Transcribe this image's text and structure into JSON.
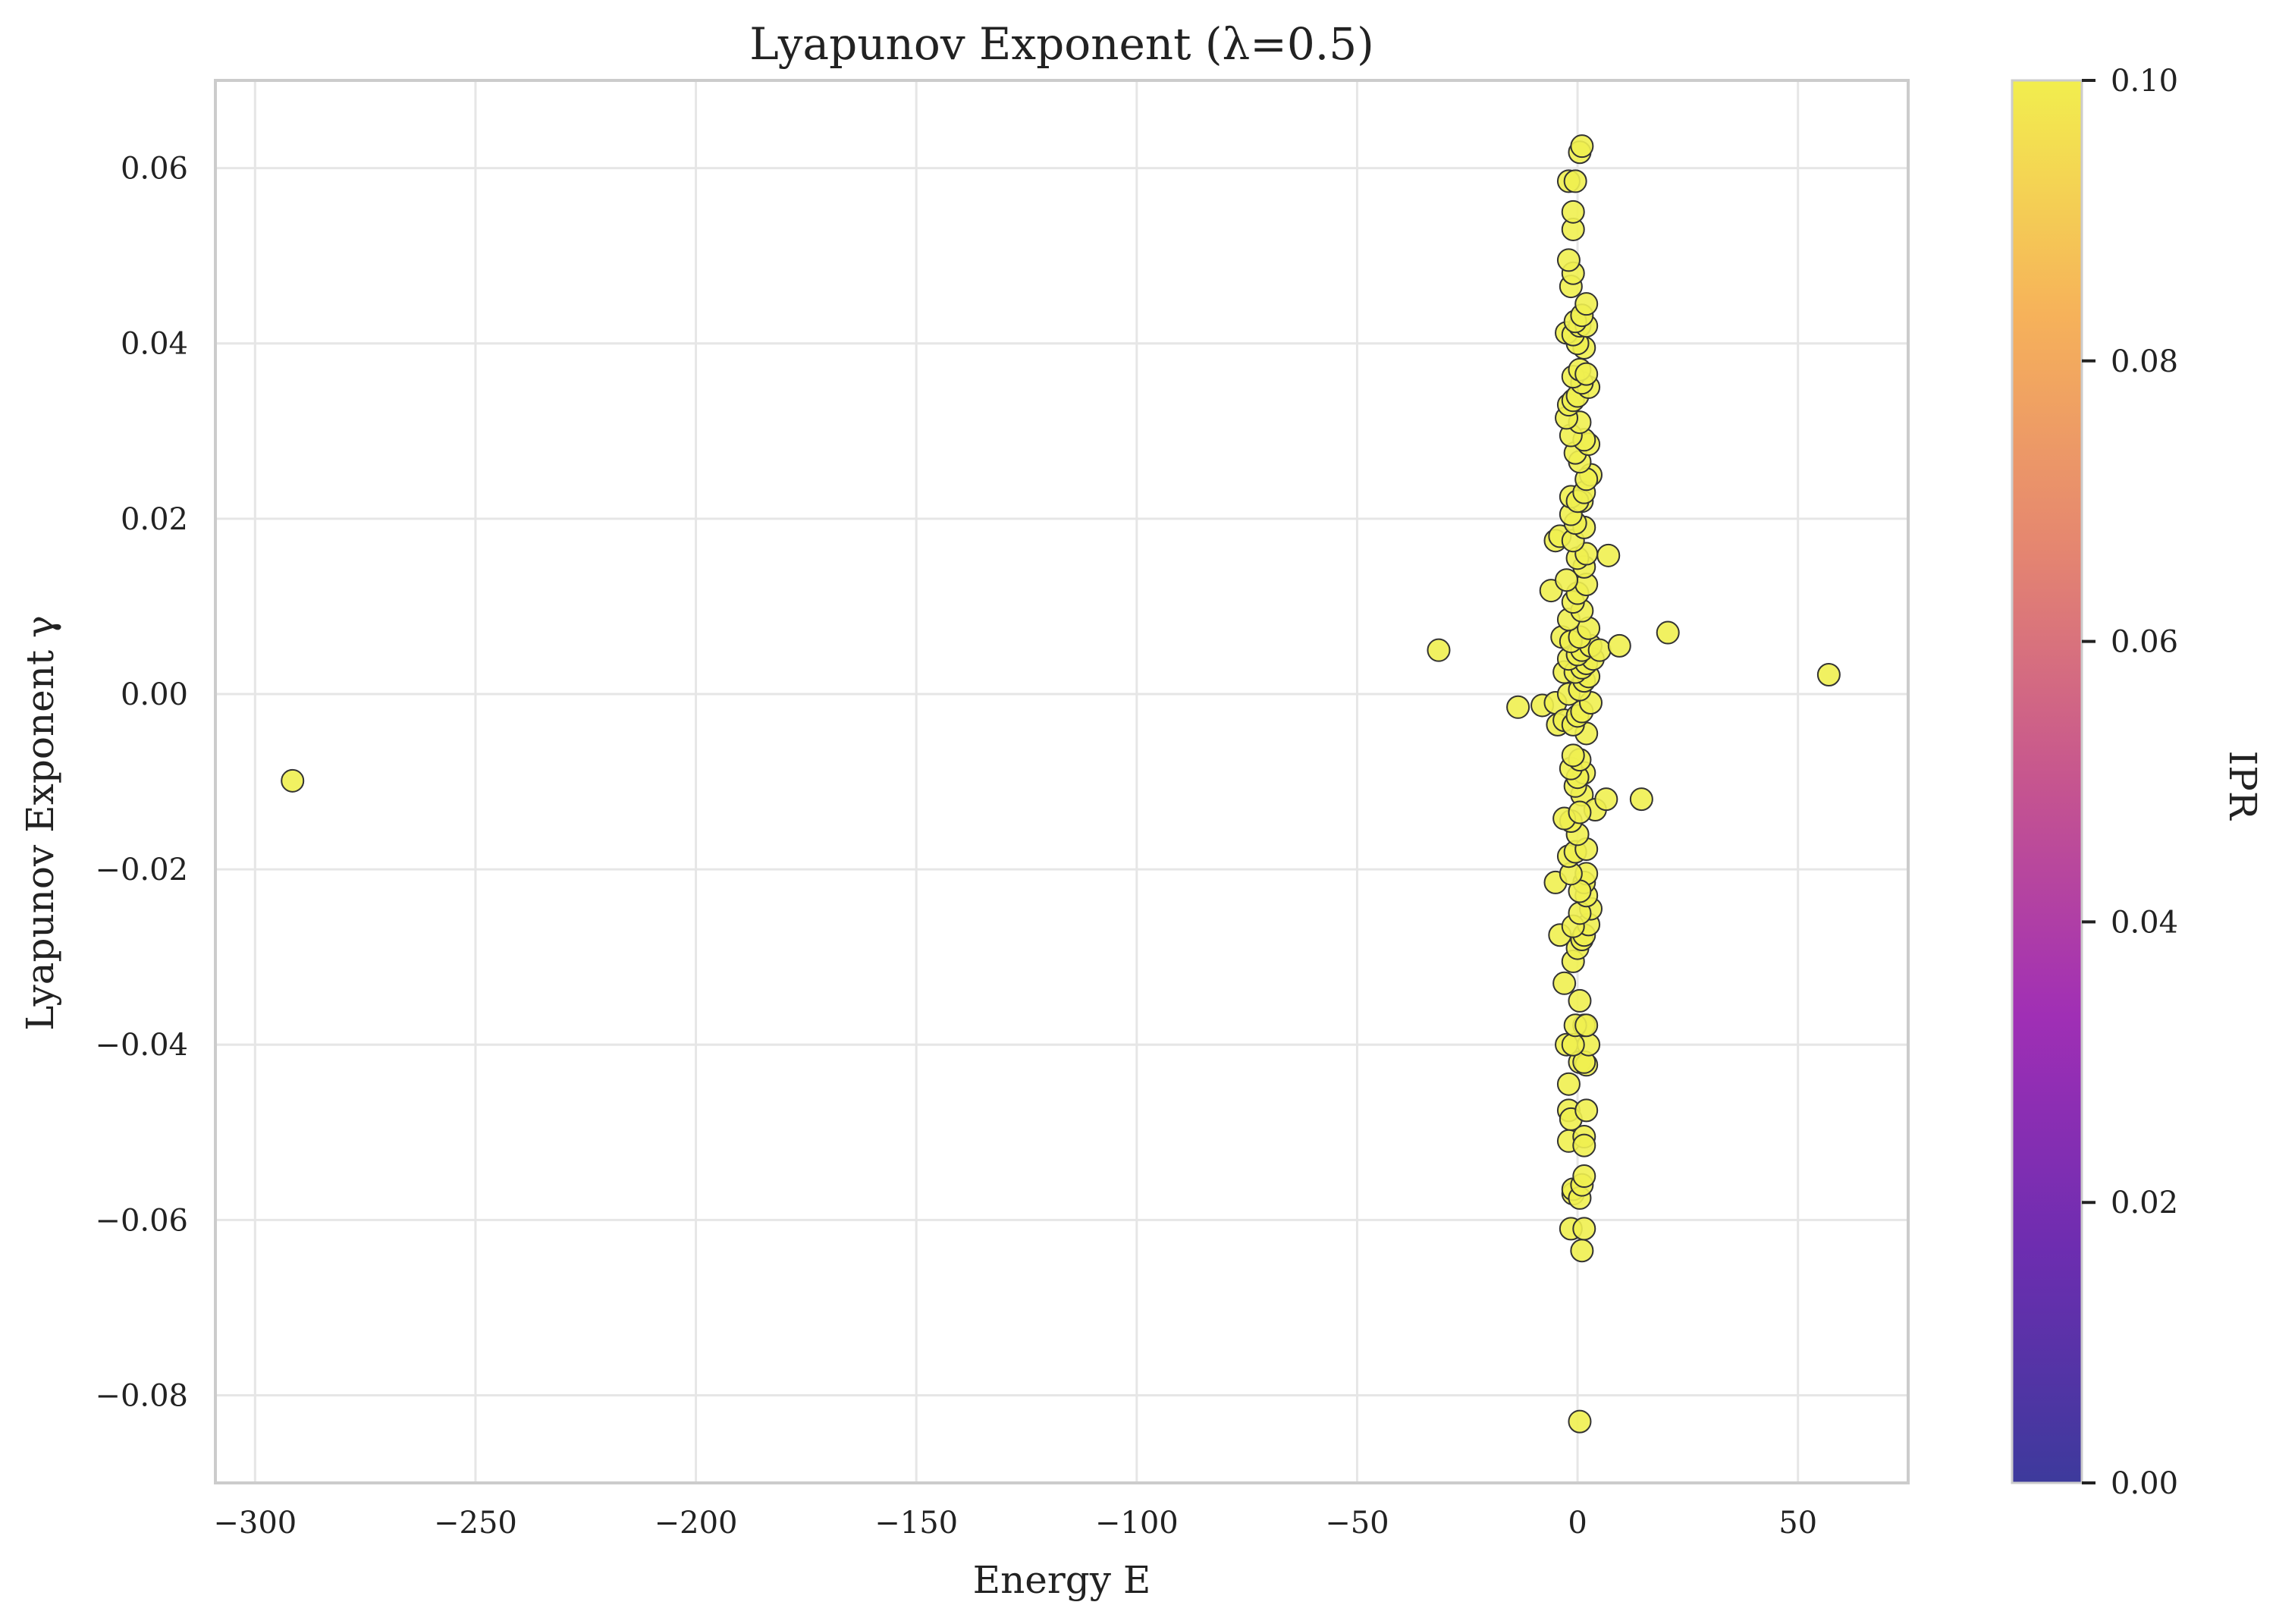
{
  "chart_data": {
    "type": "scatter",
    "title": "Lyapunov Exponent (λ=0.5)",
    "xlabel": "Energy E",
    "ylabel": "Lyapunov Exponent γ",
    "xlim": [
      -309,
      75
    ],
    "ylim": [
      -0.09,
      0.07
    ],
    "xticks": [
      -300,
      -250,
      -200,
      -150,
      -100,
      -50,
      0,
      50
    ],
    "xtick_labels": [
      "−300",
      "−250",
      "−200",
      "−150",
      "−100",
      "−50",
      "0",
      "50"
    ],
    "yticks": [
      -0.08,
      -0.06,
      -0.04,
      -0.02,
      0.0,
      0.02,
      0.04,
      0.06
    ],
    "ytick_labels": [
      "−0.08",
      "−0.06",
      "−0.04",
      "−0.02",
      "0.00",
      "0.02",
      "0.04",
      "0.06"
    ],
    "grid": true,
    "point_color": "#f0f050",
    "point_edge_color": "#333333",
    "colorbar": {
      "label": "IPR",
      "range": [
        0.0,
        0.1
      ],
      "ticks": [
        0.0,
        0.02,
        0.04,
        0.06,
        0.08,
        0.1
      ],
      "tick_labels": [
        "0.00",
        "0.02",
        "0.04",
        "0.06",
        "0.08",
        "0.10"
      ],
      "colormap": "plasma",
      "stops": [
        "#3d3a9c",
        "#6d2db0",
        "#a02fb5",
        "#c6558f",
        "#e58670",
        "#f6b25a",
        "#f2ee4e"
      ]
    },
    "series": [
      {
        "points": [
          [
            -291.5,
            -0.0099
          ],
          [
            -31.5,
            0.005
          ],
          [
            -13.5,
            -0.0015
          ],
          [
            -8.0,
            -0.0013
          ],
          [
            -5.0,
            -0.001
          ],
          [
            -6.0,
            0.0118
          ],
          [
            -5.0,
            0.0175
          ],
          [
            -4.0,
            0.018
          ],
          [
            -3.5,
            0.0065
          ],
          [
            -3.0,
            0.0025
          ],
          [
            -4.5,
            -0.0035
          ],
          [
            -3.0,
            -0.003
          ],
          [
            -5.0,
            -0.0215
          ],
          [
            -4.0,
            -0.0275
          ],
          [
            -3.0,
            -0.033
          ],
          [
            -2.5,
            -0.04
          ],
          [
            -2.0,
            -0.0445
          ],
          [
            -2.0,
            -0.0475
          ],
          [
            -1.5,
            -0.0485
          ],
          [
            -2.0,
            -0.051
          ],
          [
            -1.0,
            -0.057
          ],
          [
            -1.0,
            -0.0565
          ],
          [
            -1.5,
            -0.061
          ],
          [
            1.0,
            -0.0635
          ],
          [
            1.5,
            -0.061
          ],
          [
            0.5,
            -0.0575
          ],
          [
            1.0,
            -0.056
          ],
          [
            1.5,
            -0.055
          ],
          [
            1.5,
            -0.0505
          ],
          [
            1.5,
            -0.0515
          ],
          [
            2.0,
            -0.0475
          ],
          [
            0.5,
            -0.042
          ],
          [
            2.0,
            -0.0423
          ],
          [
            1.5,
            -0.042
          ],
          [
            2.5,
            -0.04
          ],
          [
            -1.0,
            -0.04
          ],
          [
            1.5,
            -0.0378
          ],
          [
            -0.5,
            -0.0378
          ],
          [
            2.0,
            -0.0378
          ],
          [
            0.5,
            -0.035
          ],
          [
            -1.0,
            -0.0305
          ],
          [
            0.0,
            -0.029
          ],
          [
            1.0,
            -0.028
          ],
          [
            1.5,
            -0.0275
          ],
          [
            2.5,
            -0.0263
          ],
          [
            3.0,
            -0.0245
          ],
          [
            -1.0,
            -0.0265
          ],
          [
            0.5,
            -0.025
          ],
          [
            2.0,
            -0.023
          ],
          [
            1.5,
            -0.0215
          ],
          [
            2.0,
            -0.0205
          ],
          [
            0.5,
            -0.0225
          ],
          [
            -1.5,
            -0.0205
          ],
          [
            -2.0,
            -0.0185
          ],
          [
            -0.5,
            -0.018
          ],
          [
            2.0,
            -0.0177
          ],
          [
            0.0,
            -0.016
          ],
          [
            -1.5,
            -0.0145
          ],
          [
            -3.0,
            -0.0142
          ],
          [
            1.0,
            -0.0115
          ],
          [
            -0.5,
            -0.0105
          ],
          [
            1.5,
            -0.009
          ],
          [
            0.0,
            -0.0095
          ],
          [
            -1.5,
            -0.0085
          ],
          [
            0.5,
            -0.0075
          ],
          [
            -1.0,
            -0.007
          ],
          [
            4.0,
            -0.0132
          ],
          [
            6.5,
            -0.012
          ],
          [
            14.5,
            -0.012
          ],
          [
            0.5,
            -0.0135
          ],
          [
            2.0,
            -0.0045
          ],
          [
            -1.0,
            -0.0035
          ],
          [
            0.0,
            -0.0025
          ],
          [
            1.0,
            -0.002
          ],
          [
            3.0,
            -0.001
          ],
          [
            -2.0,
            0.0
          ],
          [
            0.5,
            0.0005
          ],
          [
            1.5,
            0.0015
          ],
          [
            2.5,
            0.002
          ],
          [
            -0.5,
            0.0025
          ],
          [
            1.0,
            0.003
          ],
          [
            2.0,
            0.0035
          ],
          [
            3.5,
            0.004
          ],
          [
            -2.0,
            0.004
          ],
          [
            0.0,
            0.0045
          ],
          [
            1.0,
            0.005
          ],
          [
            3.0,
            0.0055
          ],
          [
            5.0,
            0.005
          ],
          [
            9.5,
            0.0055
          ],
          [
            20.5,
            0.007
          ],
          [
            57.0,
            0.0022
          ],
          [
            -1.5,
            0.006
          ],
          [
            0.5,
            0.0065
          ],
          [
            2.5,
            0.0075
          ],
          [
            -2.0,
            0.0085
          ],
          [
            1.0,
            0.0095
          ],
          [
            -1.0,
            0.0105
          ],
          [
            0.0,
            0.0115
          ],
          [
            2.0,
            0.0125
          ],
          [
            7.0,
            0.0158
          ],
          [
            -2.5,
            0.013
          ],
          [
            1.5,
            0.0145
          ],
          [
            0.0,
            0.0155
          ],
          [
            2.0,
            0.016
          ],
          [
            -1.0,
            0.0175
          ],
          [
            1.5,
            0.019
          ],
          [
            -0.5,
            0.0195
          ],
          [
            -1.5,
            0.0205
          ],
          [
            1.0,
            0.022
          ],
          [
            -1.5,
            0.0225
          ],
          [
            0.0,
            0.022
          ],
          [
            1.5,
            0.023
          ],
          [
            3.0,
            0.025
          ],
          [
            2.0,
            0.0245
          ],
          [
            0.5,
            0.0265
          ],
          [
            -0.5,
            0.0275
          ],
          [
            2.5,
            0.0285
          ],
          [
            1.5,
            0.029
          ],
          [
            -1.5,
            0.0295
          ],
          [
            0.5,
            0.031
          ],
          [
            -2.5,
            0.0315
          ],
          [
            -2.0,
            0.033
          ],
          [
            -1.0,
            0.0335
          ],
          [
            0.0,
            0.034
          ],
          [
            2.5,
            0.035
          ],
          [
            1.0,
            0.0355
          ],
          [
            -1.0,
            0.0362
          ],
          [
            0.5,
            0.037
          ],
          [
            2.0,
            0.0365
          ],
          [
            1.5,
            0.0395
          ],
          [
            0.0,
            0.04
          ],
          [
            -2.5,
            0.0412
          ],
          [
            -1.0,
            0.041
          ],
          [
            0.5,
            0.042
          ],
          [
            2.0,
            0.042
          ],
          [
            -0.5,
            0.0425
          ],
          [
            1.0,
            0.0432
          ],
          [
            2.0,
            0.0445
          ],
          [
            -1.5,
            0.0465
          ],
          [
            -1.0,
            0.048
          ],
          [
            -2.0,
            0.0495
          ],
          [
            -1.0,
            0.053
          ],
          [
            -1.0,
            0.055
          ],
          [
            -2.0,
            0.0585
          ],
          [
            -0.5,
            0.0585
          ],
          [
            0.5,
            0.0618
          ],
          [
            1.0,
            0.0625
          ],
          [
            0.5,
            -0.083
          ]
        ]
      }
    ]
  }
}
